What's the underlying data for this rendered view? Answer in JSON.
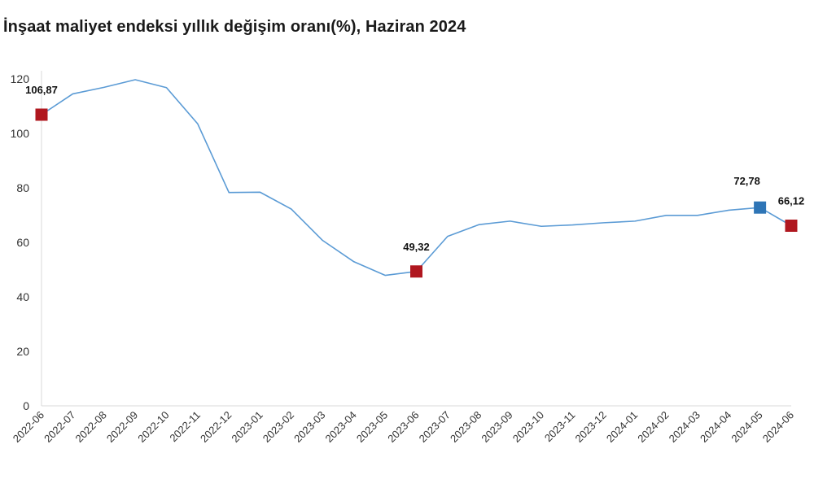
{
  "chart_data": {
    "type": "line",
    "title": "İnşaat maliyet endeksi yıllık değişim oranı(%), Haziran 2024",
    "xlabel": "",
    "ylabel": "",
    "ylim": [
      0,
      120
    ],
    "yticks": [
      0,
      20,
      40,
      60,
      80,
      100,
      120
    ],
    "grid": false,
    "legend": "none",
    "categories": [
      "2022-06",
      "2022-07",
      "2022-08",
      "2022-09",
      "2022-10",
      "2022-11",
      "2022-12",
      "2023-01",
      "2023-02",
      "2023-03",
      "2023-04",
      "2023-05",
      "2023-06",
      "2023-07",
      "2023-08",
      "2023-09",
      "2023-10",
      "2023-11",
      "2023-12",
      "2024-01",
      "2024-02",
      "2024-03",
      "2024-04",
      "2024-05",
      "2024-06"
    ],
    "series": [
      {
        "color": "#5b9bd5",
        "values": [
          106.87,
          114.5,
          116.9,
          119.7,
          116.8,
          103.5,
          78.3,
          78.4,
          72.2,
          60.7,
          52.9,
          47.9,
          49.32,
          62.2,
          66.5,
          67.8,
          65.9,
          66.4,
          67.2,
          67.8,
          69.9,
          69.9,
          71.8,
          72.78,
          66.12
        ]
      }
    ],
    "highlights": [
      {
        "index": 0,
        "label": "106,87",
        "color": "#b0171f"
      },
      {
        "index": 12,
        "label": "49,32",
        "color": "#b0171f"
      },
      {
        "index": 23,
        "label": "72,78",
        "color": "#2e75b6"
      },
      {
        "index": 24,
        "label": "66,12",
        "color": "#b0171f"
      }
    ],
    "axis_color": "#d9d9d9"
  }
}
